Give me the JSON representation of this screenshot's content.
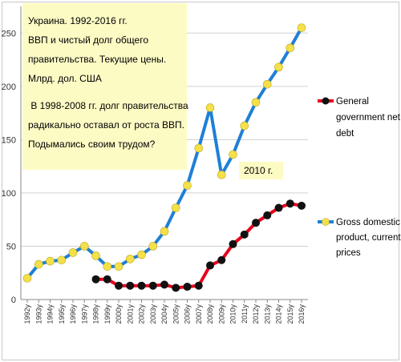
{
  "chart_data": {
    "type": "line",
    "title": "",
    "xlabel": "",
    "ylabel": "",
    "ylim": [
      0,
      275
    ],
    "yticks": [
      0,
      50,
      100,
      150,
      200,
      250
    ],
    "grid": true,
    "legend_placement": "right",
    "categories": [
      "1992y",
      "1993y",
      "1994y",
      "1995y",
      "1996y",
      "1997y",
      "1998y",
      "1999y",
      "2000y",
      "2001y",
      "2002y",
      "2003y",
      "2004y",
      "2005y",
      "2006y",
      "2007y",
      "2008y",
      "2009y",
      "2010y",
      "2011y",
      "2012y",
      "2013y",
      "2014y",
      "2015y",
      "2016y"
    ],
    "series": [
      {
        "name": "General government net debt",
        "line_color": "#e8001c",
        "marker_color": "#111111",
        "values": [
          null,
          null,
          null,
          null,
          null,
          null,
          19,
          19,
          13,
          13,
          13,
          13,
          14,
          11,
          12,
          13,
          32,
          37,
          52,
          61,
          72,
          79,
          86,
          90,
          88
        ]
      },
      {
        "name": "Gross domestic product, current prices",
        "line_color": "#1f7fd6",
        "marker_color": "#f5e04a",
        "values": [
          20,
          33,
          36,
          37,
          44,
          50,
          41,
          31,
          31,
          38,
          42,
          50,
          64,
          86,
          107,
          142,
          180,
          117,
          136,
          163,
          185,
          202,
          218,
          236,
          255
        ]
      }
    ],
    "annotations": {
      "textbox_lines": [
        "Украина. 1992-2016 гг.",
        "ВВП и чистый долг общего",
        "правительства. Текущие цены.",
        "Млрд. дол. США",
        "",
        " В 1998-2008 гг. долг правительства",
        "радикально оставал от роста ВВП.",
        "Подымались своим трудом?"
      ],
      "year_label": "2010 г."
    },
    "colors": {
      "textbox_bg": "#fdfbc4",
      "gridline": "#d0d0d0",
      "axis": "#888888"
    }
  }
}
